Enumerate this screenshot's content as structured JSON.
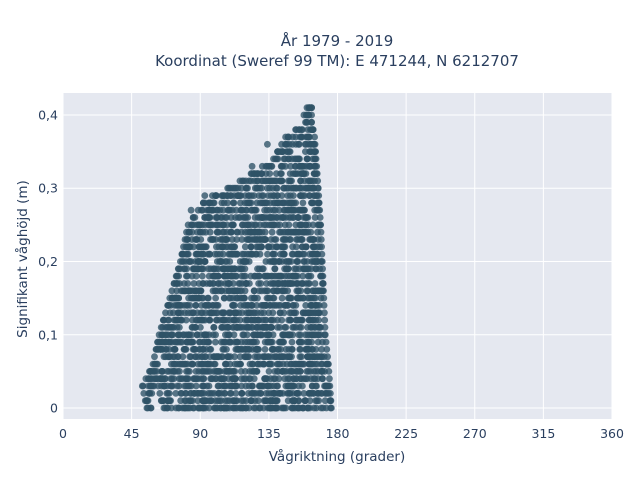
{
  "chart_data": {
    "type": "scatter",
    "title_lines": [
      "År 1979 - 2019",
      "Koordinat (Sweref 99 TM): E 471244, N 6212707"
    ],
    "xlabel": "Vågriktning (grader)",
    "ylabel": "Signifikant våghöjd (m)",
    "xlim": [
      0,
      360
    ],
    "ylim": [
      -0.015,
      0.43
    ],
    "x_ticks": [
      0,
      45,
      90,
      135,
      180,
      225,
      270,
      315,
      360
    ],
    "x_tick_labels": [
      "0",
      "45",
      "90",
      "135",
      "180",
      "225",
      "270",
      "315",
      "360"
    ],
    "y_ticks": [
      0,
      0.1,
      0.2,
      0.3,
      0.4
    ],
    "y_tick_labels": [
      "0",
      "0,1",
      "0,2",
      "0,3",
      "0,4"
    ],
    "grid": true,
    "plot_background": "#e5e8f0",
    "marker_color": "#2e5266",
    "y_step": 0.01,
    "envelope": [
      {
        "y": 0.0,
        "xmin": 55,
        "xmax": 176
      },
      {
        "y": 0.03,
        "xmin": 52,
        "xmax": 175
      },
      {
        "y": 0.06,
        "xmin": 59,
        "xmax": 174
      },
      {
        "y": 0.1,
        "xmin": 63,
        "xmax": 172
      },
      {
        "y": 0.15,
        "xmin": 70,
        "xmax": 171
      },
      {
        "y": 0.2,
        "xmin": 77,
        "xmax": 170
      },
      {
        "y": 0.25,
        "xmin": 82,
        "xmax": 169
      },
      {
        "y": 0.28,
        "xmin": 92,
        "xmax": 168
      },
      {
        "y": 0.31,
        "xmin": 116,
        "xmax": 167
      },
      {
        "y": 0.34,
        "xmin": 138,
        "xmax": 166
      },
      {
        "y": 0.37,
        "xmin": 146,
        "xmax": 165
      },
      {
        "y": 0.39,
        "xmin": 159,
        "xmax": 163
      },
      {
        "y": 0.41,
        "xmin": 160,
        "xmax": 163
      }
    ],
    "isolated_points": [
      {
        "x": 67,
        "y": 0.0
      },
      {
        "x": 80,
        "y": 0.0
      },
      {
        "x": 92,
        "y": 0.0
      },
      {
        "x": 118,
        "y": 0.0
      },
      {
        "x": 136,
        "y": 0.0
      },
      {
        "x": 145,
        "y": 0.0
      },
      {
        "x": 150,
        "y": 0.0
      },
      {
        "x": 134,
        "y": 0.36
      },
      {
        "x": 153,
        "y": 0.38
      },
      {
        "x": 158,
        "y": 0.4
      },
      {
        "x": 164,
        "y": 0.38
      },
      {
        "x": 148,
        "y": 0.37
      },
      {
        "x": 121,
        "y": 0.3
      },
      {
        "x": 124,
        "y": 0.33
      },
      {
        "x": 137,
        "y": 0.33
      },
      {
        "x": 93,
        "y": 0.29
      },
      {
        "x": 98,
        "y": 0.29
      },
      {
        "x": 84,
        "y": 0.27
      },
      {
        "x": 105,
        "y": 0.27
      },
      {
        "x": 162,
        "y": 0.41
      },
      {
        "x": 161,
        "y": 0.4
      }
    ]
  }
}
